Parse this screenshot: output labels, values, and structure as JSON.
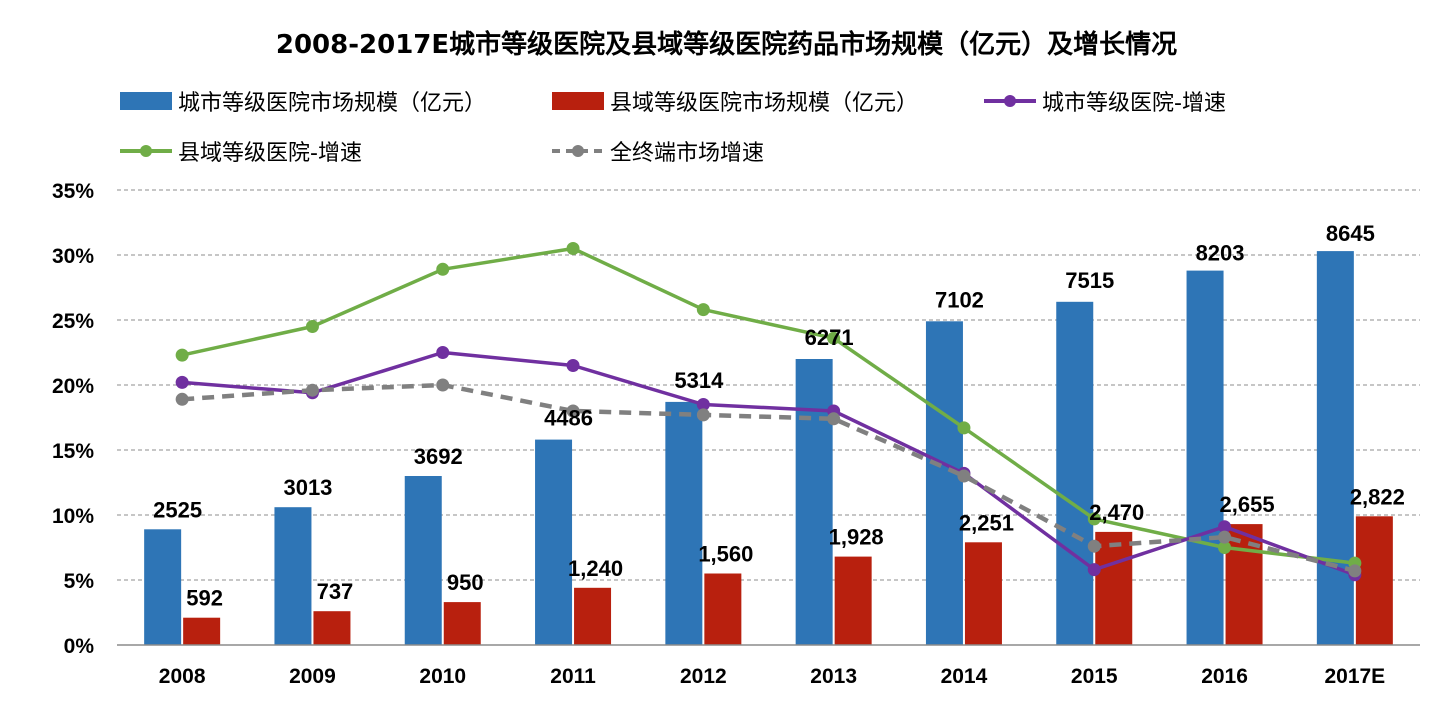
{
  "chart_data": {
    "type": "bar",
    "title": "2008-2017E城市等级医院及县域等级医院药品市场规模（亿元）及增长情况",
    "categories": [
      "2008",
      "2009",
      "2010",
      "2011",
      "2012",
      "2013",
      "2014",
      "2015",
      "2016",
      "2017E"
    ],
    "y_ticks": [
      "0%",
      "5%",
      "10%",
      "15%",
      "20%",
      "25%",
      "30%",
      "35%"
    ],
    "ylim": [
      0,
      35
    ],
    "grid": true,
    "legend_position": "top",
    "series": [
      {
        "name": "城市等级医院市场规模（亿元）",
        "kind": "bar",
        "color": "#2E75B6",
        "values": [
          2525,
          3013,
          3692,
          4486,
          5314,
          6271,
          7102,
          7515,
          8203,
          8645
        ],
        "labels": [
          "2525",
          "3013",
          "3692",
          "4486",
          "5314",
          "6271",
          "7102",
          "7515",
          "8203",
          "8645"
        ],
        "bar_height_pct": [
          8.9,
          10.6,
          13.0,
          15.8,
          18.7,
          22.0,
          24.9,
          26.4,
          28.8,
          30.3
        ]
      },
      {
        "name": "县域等级医院市场规模（亿元）",
        "kind": "bar",
        "color": "#B8200E",
        "values": [
          592,
          737,
          950,
          1240,
          1560,
          1928,
          2251,
          2470,
          2655,
          2822
        ],
        "labels": [
          "592",
          "737",
          "950",
          "1,240",
          "1,560",
          "1,928",
          "2,251",
          "2,470",
          "2,655",
          "2,822"
        ],
        "bar_height_pct": [
          2.1,
          2.6,
          3.3,
          4.4,
          5.5,
          6.8,
          7.9,
          8.7,
          9.3,
          9.9
        ]
      },
      {
        "name": "城市等级医院-增速",
        "kind": "line",
        "color": "#7030A0",
        "values": [
          20.2,
          19.4,
          22.5,
          21.5,
          18.5,
          18.0,
          13.2,
          5.8,
          9.1,
          5.4
        ]
      },
      {
        "name": "县域等级医院-增速",
        "kind": "line",
        "color": "#70AD47",
        "values": [
          22.3,
          24.5,
          28.9,
          30.5,
          25.8,
          23.6,
          16.7,
          9.7,
          7.5,
          6.3
        ]
      },
      {
        "name": "全终端市场增速",
        "kind": "dashed-line",
        "color": "#808080",
        "values": [
          18.9,
          19.6,
          20.0,
          18.0,
          17.7,
          17.4,
          13.0,
          7.6,
          8.3,
          5.7
        ]
      }
    ]
  }
}
